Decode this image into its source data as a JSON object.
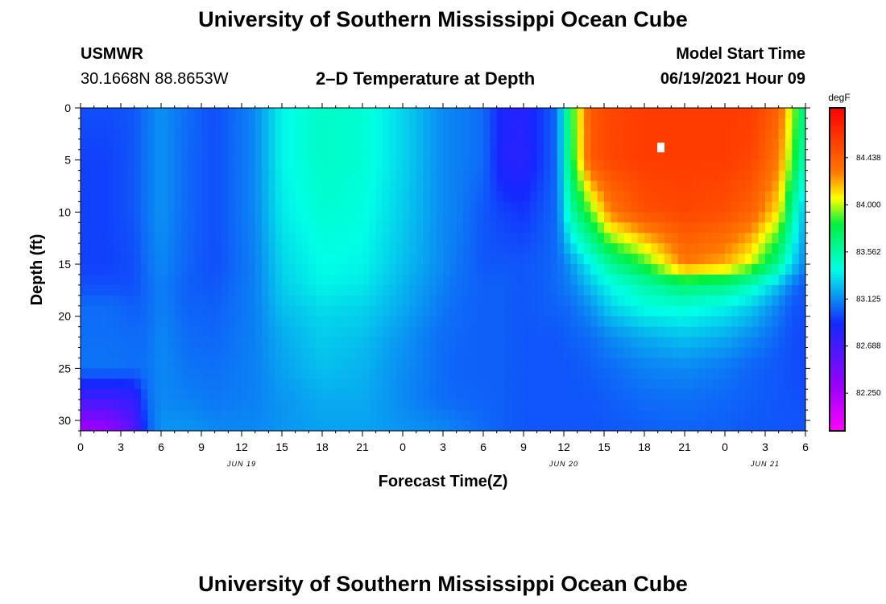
{
  "header": {
    "title": "University of Southern Mississippi Ocean Cube",
    "station": "USMWR",
    "coords": "30.1668N  88.8653W",
    "chart_title": "2–D Temperature at Depth",
    "model_start_label": "Model Start Time",
    "model_start_value": "06/19/2021 Hour 09"
  },
  "footer": {
    "title": "University of Southern Mississippi Ocean Cube"
  },
  "chart_data": {
    "type": "heatmap",
    "title": "2–D Temperature at Depth",
    "xlabel": "Forecast Time(Z)",
    "ylabel": "Depth (ft)",
    "x_hours_range": [
      0,
      54
    ],
    "x_ticks": [
      "0",
      "3",
      "6",
      "9",
      "12",
      "15",
      "18",
      "21",
      "0",
      "3",
      "6",
      "9",
      "12",
      "15",
      "18",
      "21",
      "0",
      "3",
      "6"
    ],
    "date_labels": [
      {
        "text": "JUN 19",
        "hour": 12
      },
      {
        "text": "JUN 20",
        "hour": 36
      },
      {
        "text": "JUN 21",
        "hour": 51
      }
    ],
    "ylim": [
      0,
      31
    ],
    "y_ticks": [
      0,
      5,
      10,
      15,
      20,
      25,
      30
    ],
    "colorbar": {
      "unit": "degF",
      "min": 81.9,
      "max": 84.9,
      "ticks": [
        "84.438",
        "84.000",
        "83.562",
        "83.125",
        "82.688",
        "82.250"
      ]
    },
    "colors": {
      "magenta": "#ff00ff",
      "purple": "#9900ff",
      "blue": "#1428ff",
      "cyan": "#00ffe6",
      "green": "#00f040",
      "yellow": "#ffff00",
      "orange": "#ff7800",
      "red": "#ff0000"
    },
    "temperature_grid": {
      "unit": "degF",
      "depths_ft": [
        0,
        5,
        10,
        15,
        17,
        19,
        22,
        25,
        28,
        31
      ],
      "hours": [
        0,
        2,
        4,
        5,
        6,
        8,
        10,
        13,
        15,
        18,
        21,
        24,
        27,
        28,
        30,
        31.5,
        33,
        34.5,
        35.5,
        36.5,
        38,
        39.5,
        42,
        45,
        48,
        50,
        52,
        53,
        54
      ],
      "values": [
        [
          82.98,
          82.98,
          83.0,
          83.08,
          83.14,
          83.05,
          82.98,
          83.12,
          83.38,
          83.48,
          83.45,
          83.3,
          83.12,
          83.1,
          83.05,
          82.85,
          82.82,
          82.95,
          83.05,
          83.8,
          84.45,
          84.55,
          84.6,
          84.6,
          84.6,
          84.6,
          84.4,
          84.0,
          83.6
        ],
        [
          82.95,
          82.95,
          83.0,
          83.08,
          83.14,
          83.04,
          82.98,
          83.12,
          83.38,
          83.48,
          83.45,
          83.3,
          83.12,
          83.1,
          83.05,
          82.82,
          82.8,
          82.95,
          83.05,
          83.75,
          84.45,
          84.55,
          84.6,
          84.6,
          84.6,
          84.55,
          84.3,
          83.9,
          83.5
        ],
        [
          82.95,
          82.95,
          83.0,
          83.08,
          83.14,
          83.04,
          82.98,
          83.12,
          83.35,
          83.45,
          83.42,
          83.28,
          83.12,
          83.1,
          83.0,
          82.95,
          82.92,
          83.0,
          83.05,
          83.55,
          83.9,
          84.3,
          84.5,
          84.55,
          84.5,
          84.4,
          84.1,
          83.6,
          83.2
        ],
        [
          82.95,
          82.95,
          82.98,
          83.06,
          83.12,
          83.03,
          82.98,
          83.1,
          83.3,
          83.4,
          83.38,
          83.25,
          83.12,
          83.08,
          83.0,
          83.0,
          83.0,
          83.02,
          83.05,
          83.15,
          83.38,
          83.6,
          83.85,
          84.3,
          84.2,
          84.0,
          83.6,
          83.3,
          83.1
        ],
        [
          82.98,
          82.98,
          82.98,
          83.05,
          83.1,
          83.02,
          83.0,
          83.1,
          83.28,
          83.38,
          83.35,
          83.22,
          83.1,
          83.06,
          83.02,
          83.02,
          83.0,
          83.02,
          83.05,
          83.1,
          83.25,
          83.4,
          83.55,
          83.7,
          83.65,
          83.5,
          83.25,
          83.08,
          83.0
        ],
        [
          83.05,
          83.05,
          83.02,
          83.05,
          83.1,
          83.03,
          83.02,
          83.1,
          83.25,
          83.32,
          83.3,
          83.2,
          83.08,
          83.05,
          83.02,
          83.02,
          83.0,
          83.02,
          83.03,
          83.05,
          83.15,
          83.3,
          83.42,
          83.45,
          83.38,
          83.28,
          83.1,
          83.0,
          82.98
        ],
        [
          83.06,
          83.06,
          83.05,
          83.06,
          83.12,
          83.05,
          83.04,
          83.1,
          83.2,
          83.28,
          83.25,
          83.15,
          83.05,
          83.04,
          83.02,
          83.02,
          83.0,
          83.0,
          83.0,
          83.02,
          83.05,
          83.12,
          83.2,
          83.25,
          83.2,
          83.12,
          83.03,
          82.98,
          82.96
        ],
        [
          83.07,
          83.07,
          83.06,
          83.07,
          83.12,
          83.07,
          83.06,
          83.1,
          83.18,
          83.25,
          83.22,
          83.13,
          83.05,
          83.03,
          83.02,
          83.02,
          83.0,
          83.0,
          83.0,
          83.0,
          83.02,
          83.05,
          83.1,
          83.12,
          83.08,
          83.03,
          83.0,
          82.98,
          82.96
        ],
        [
          82.7,
          82.7,
          82.75,
          83.05,
          83.12,
          83.1,
          83.08,
          83.1,
          83.15,
          83.2,
          83.2,
          83.12,
          83.05,
          83.04,
          83.03,
          83.02,
          83.0,
          83.0,
          83.0,
          83.0,
          83.0,
          83.02,
          83.05,
          83.06,
          83.04,
          83.02,
          83.0,
          82.99,
          82.98
        ],
        [
          82.25,
          82.3,
          82.6,
          83.0,
          83.15,
          83.15,
          83.12,
          83.12,
          83.15,
          83.18,
          83.18,
          83.15,
          83.12,
          83.1,
          83.05,
          83.02,
          83.0,
          83.0,
          83.0,
          83.0,
          83.0,
          83.0,
          83.02,
          83.03,
          83.02,
          83.0,
          83.0,
          83.0,
          83.0
        ]
      ]
    },
    "markers": [
      {
        "hour": 43.2,
        "depth_ft": 3.8,
        "label": "max-temperature-marker"
      }
    ]
  }
}
